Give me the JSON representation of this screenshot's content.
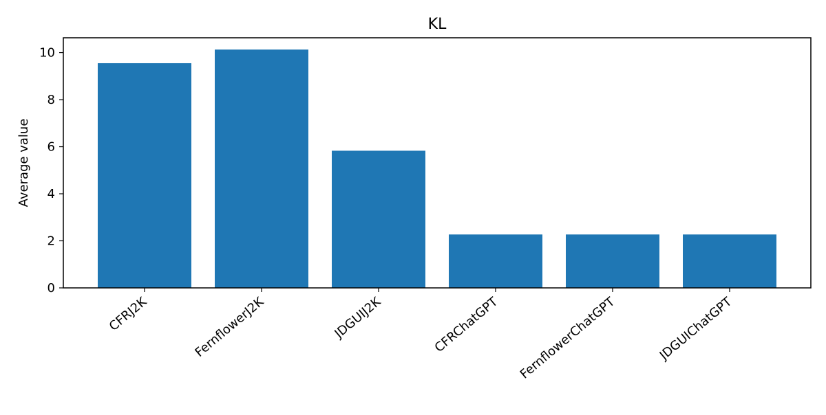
{
  "chart_data": {
    "type": "bar",
    "title": "KL",
    "xlabel": "",
    "ylabel": "Average value",
    "categories": [
      "CFRJ2K",
      "FernflowerJ2K",
      "JDGUIJ2K",
      "CFRChatGPT",
      "FernflowerChatGPT",
      "JDGUIChatGPT"
    ],
    "values": [
      9.55,
      10.13,
      5.83,
      2.27,
      2.27,
      2.27
    ],
    "ylim": [
      0,
      10.63
    ],
    "yticks": [
      0,
      2,
      4,
      6,
      8,
      10
    ],
    "grid": false,
    "legend": "none",
    "colors": {
      "bar": "#1f77b4",
      "axis": "#000000",
      "background": "#ffffff"
    }
  }
}
